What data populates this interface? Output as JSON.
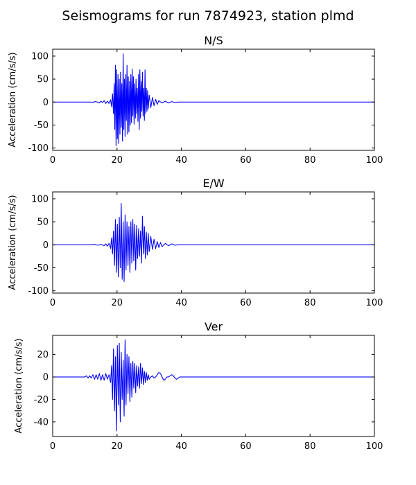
{
  "figure": {
    "suptitle": "Seismograms for run 7874923, station plmd",
    "series_color": "#0000ff"
  },
  "chart_data": [
    {
      "type": "line",
      "title": "N/S",
      "xlabel": "",
      "ylabel": "Acceleration (cm/s/s)",
      "xlim": [
        0,
        100
      ],
      "ylim": [
        -105,
        115
      ],
      "xticks": [
        0,
        20,
        40,
        60,
        80,
        100
      ],
      "yticks": [
        -100,
        -50,
        0,
        50,
        100
      ],
      "grid": false,
      "series": [
        {
          "x": [
            0,
            10,
            12,
            12.5,
            13,
            14,
            14.5,
            15,
            15.5,
            16,
            16.5,
            17,
            17.5,
            18,
            18.3,
            18.6,
            18.9,
            19.1,
            19.3,
            19.5,
            19.7,
            19.9,
            20.1,
            20.3,
            20.5,
            20.7,
            20.9,
            21.1,
            21.3,
            21.5,
            21.7,
            21.9,
            22.1,
            22.3,
            22.5,
            22.7,
            22.9,
            23.1,
            23.3,
            23.5,
            23.7,
            23.9,
            24.1,
            24.3,
            24.5,
            24.7,
            24.9,
            25.1,
            25.3,
            25.5,
            25.7,
            25.9,
            26.1,
            26.3,
            26.5,
            26.7,
            26.9,
            27.1,
            27.3,
            27.5,
            27.7,
            27.9,
            28.1,
            28.3,
            28.5,
            28.7,
            28.9,
            29.1,
            29.3,
            29.5,
            29.7,
            30,
            30.5,
            31,
            31.5,
            32,
            32.5,
            33,
            34,
            35,
            36,
            37,
            38,
            39,
            40,
            42,
            60,
            100
          ],
          "values": [
            0,
            0,
            0,
            -1,
            1,
            0,
            -2,
            2,
            -1,
            3,
            -3,
            2,
            -3,
            5,
            -10,
            18,
            -25,
            40,
            -60,
            80,
            -95,
            70,
            -80,
            60,
            -90,
            50,
            -70,
            65,
            -55,
            40,
            -85,
            105,
            -60,
            50,
            -75,
            60,
            -40,
            80,
            -70,
            55,
            -65,
            45,
            -50,
            60,
            -45,
            72,
            -30,
            55,
            -48,
            40,
            -35,
            50,
            -25,
            30,
            -42,
            60,
            -60,
            70,
            -35,
            45,
            -20,
            65,
            -30,
            30,
            -40,
            70,
            -25,
            30,
            -20,
            25,
            -15,
            15,
            -12,
            10,
            -8,
            6,
            -5,
            3,
            -2,
            2,
            -2,
            1,
            -1,
            0,
            0,
            0,
            0,
            0
          ]
        }
      ]
    },
    {
      "type": "line",
      "title": "E/W",
      "xlabel": "",
      "ylabel": "Acceleration (cm/s/s)",
      "xlim": [
        0,
        100
      ],
      "ylim": [
        -105,
        115
      ],
      "xticks": [
        0,
        20,
        40,
        60,
        80,
        100
      ],
      "yticks": [
        -100,
        -50,
        0,
        50,
        100
      ],
      "grid": false,
      "series": [
        {
          "x": [
            0,
            10,
            12,
            13,
            14,
            15,
            16,
            16.5,
            17,
            17.5,
            18,
            18.3,
            18.6,
            18.9,
            19.2,
            19.5,
            19.8,
            20.1,
            20.4,
            20.7,
            21,
            21.3,
            21.6,
            21.9,
            22.2,
            22.5,
            22.8,
            23.1,
            23.4,
            23.7,
            24,
            24.3,
            24.6,
            24.9,
            25.2,
            25.5,
            25.8,
            26.1,
            26.4,
            26.7,
            27,
            27.3,
            27.6,
            27.9,
            28.2,
            28.5,
            28.8,
            29.1,
            29.4,
            29.7,
            30,
            30.5,
            31,
            31.5,
            32,
            32.5,
            33,
            33.5,
            34,
            35,
            36,
            37,
            38,
            39,
            40,
            42,
            60,
            100
          ],
          "values": [
            0,
            0,
            0,
            1,
            -1,
            1,
            -2,
            2,
            -3,
            3,
            -8,
            15,
            -20,
            30,
            -45,
            55,
            -60,
            45,
            -70,
            60,
            -50,
            90,
            -75,
            50,
            -80,
            65,
            -55,
            50,
            -45,
            40,
            -60,
            50,
            -40,
            55,
            -35,
            45,
            -55,
            42,
            -30,
            35,
            -25,
            30,
            -40,
            62,
            -20,
            40,
            -30,
            28,
            -22,
            25,
            -15,
            18,
            -10,
            12,
            -8,
            7,
            -6,
            5,
            -4,
            3,
            -2,
            2,
            -1,
            0,
            0,
            0,
            0,
            0
          ]
        }
      ]
    },
    {
      "type": "line",
      "title": "Ver",
      "xlabel": "",
      "ylabel": "Acceleration (cm/s/s)",
      "xlim": [
        0,
        100
      ],
      "ylim": [
        -53,
        37
      ],
      "xticks": [
        0,
        20,
        40,
        60,
        80,
        100
      ],
      "yticks": [
        -40,
        -20,
        0,
        20
      ],
      "grid": false,
      "series": [
        {
          "x": [
            0,
            10,
            10.5,
            11,
            11.5,
            12,
            12.5,
            13,
            13.5,
            14,
            14.5,
            15,
            15.5,
            16,
            16.5,
            17,
            17.5,
            18,
            18.3,
            18.6,
            18.9,
            19.2,
            19.5,
            19.8,
            20.1,
            20.4,
            20.7,
            21,
            21.3,
            21.6,
            21.9,
            22.2,
            22.5,
            22.8,
            23.1,
            23.4,
            23.7,
            24,
            24.3,
            24.6,
            24.9,
            25.2,
            25.5,
            25.8,
            26.1,
            26.4,
            26.7,
            27,
            27.3,
            27.6,
            27.9,
            28.2,
            28.5,
            28.8,
            29.1,
            29.4,
            29.7,
            30,
            30.5,
            31,
            31.5,
            32,
            32.5,
            33,
            33.5,
            34,
            34.5,
            35,
            35.5,
            36,
            36.5,
            37,
            37.5,
            38,
            38.5,
            39,
            39.5,
            40,
            41,
            42,
            60,
            100
          ],
          "values": [
            0,
            0,
            1,
            -1,
            1,
            -1,
            2,
            -2,
            2,
            -2,
            3,
            -3,
            2,
            -3,
            3,
            -2,
            2,
            -5,
            10,
            -20,
            25,
            -30,
            18,
            -48,
            28,
            -25,
            30,
            -40,
            22,
            -20,
            15,
            -35,
            33,
            -25,
            20,
            -15,
            18,
            -22,
            12,
            -18,
            14,
            -10,
            12,
            -14,
            10,
            -8,
            9,
            -10,
            12,
            -6,
            8,
            -7,
            5,
            -5,
            4,
            -3,
            2,
            -2,
            0,
            1,
            -1,
            0,
            2,
            4,
            3,
            0,
            -3,
            -2,
            0,
            0,
            1,
            2,
            1,
            -1,
            -2,
            -1,
            0,
            0,
            0,
            0,
            0,
            0
          ]
        }
      ]
    }
  ]
}
